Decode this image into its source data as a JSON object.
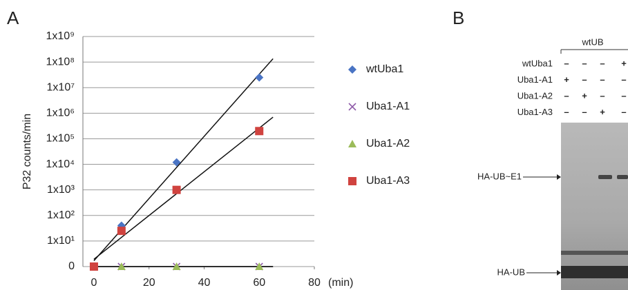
{
  "chart_data": {
    "type": "scatter",
    "panel_label": "A",
    "y_label": "P32 counts/min",
    "x_label": "(min)",
    "x": [
      0,
      10,
      30,
      60
    ],
    "xlim": [
      -4,
      80
    ],
    "xticks": [
      0,
      20,
      40,
      60,
      80
    ],
    "ylim": [
      1,
      1000000000
    ],
    "log_y": true,
    "grid": true,
    "trendlines": true,
    "legend": "right",
    "yticks": [
      {
        "value": 1,
        "label": "0"
      },
      {
        "value": 10,
        "label": "1x10¹"
      },
      {
        "value": 100,
        "label": "1x10²"
      },
      {
        "value": 1000,
        "label": "1x10³"
      },
      {
        "value": 10000,
        "label": "1x10⁴"
      },
      {
        "value": 100000,
        "label": "1x10⁵"
      },
      {
        "value": 1000000,
        "label": "1x10⁶"
      },
      {
        "value": 10000000,
        "label": "1x10⁷"
      },
      {
        "value": 100000000,
        "label": "1x10⁸"
      },
      {
        "value": 1000000000,
        "label": "1x10⁹"
      }
    ],
    "series": [
      {
        "name": "wtUba1",
        "color": "#4a74c4",
        "marker": "diamond",
        "values": [
          1,
          40,
          12000,
          25000000
        ]
      },
      {
        "name": "Uba1-A1",
        "color": "#8e5aa8",
        "marker": "cross",
        "values": [
          1,
          1,
          1,
          1
        ]
      },
      {
        "name": "Uba1-A2",
        "color": "#9bbb59",
        "marker": "triangle",
        "values": [
          1,
          1,
          1,
          1
        ]
      },
      {
        "name": "Uba1-A3",
        "color": "#d0433f",
        "marker": "square",
        "values": [
          1,
          25,
          1000,
          200000
        ]
      }
    ]
  },
  "panel_b": {
    "panel_label": "B",
    "group": "wtUB",
    "rows": [
      {
        "name": "wtUba1",
        "signs": [
          "–",
          "–",
          "–",
          "+"
        ]
      },
      {
        "name": "Uba1-A1",
        "signs": [
          "+",
          "–",
          "–",
          "–"
        ]
      },
      {
        "name": "Uba1-A2",
        "signs": [
          "–",
          "+",
          "–",
          "–"
        ]
      },
      {
        "name": "Uba1-A3",
        "signs": [
          "–",
          "–",
          "+",
          "–"
        ]
      }
    ],
    "bands": [
      "HA-UB~E1",
      "HA-UB"
    ]
  }
}
